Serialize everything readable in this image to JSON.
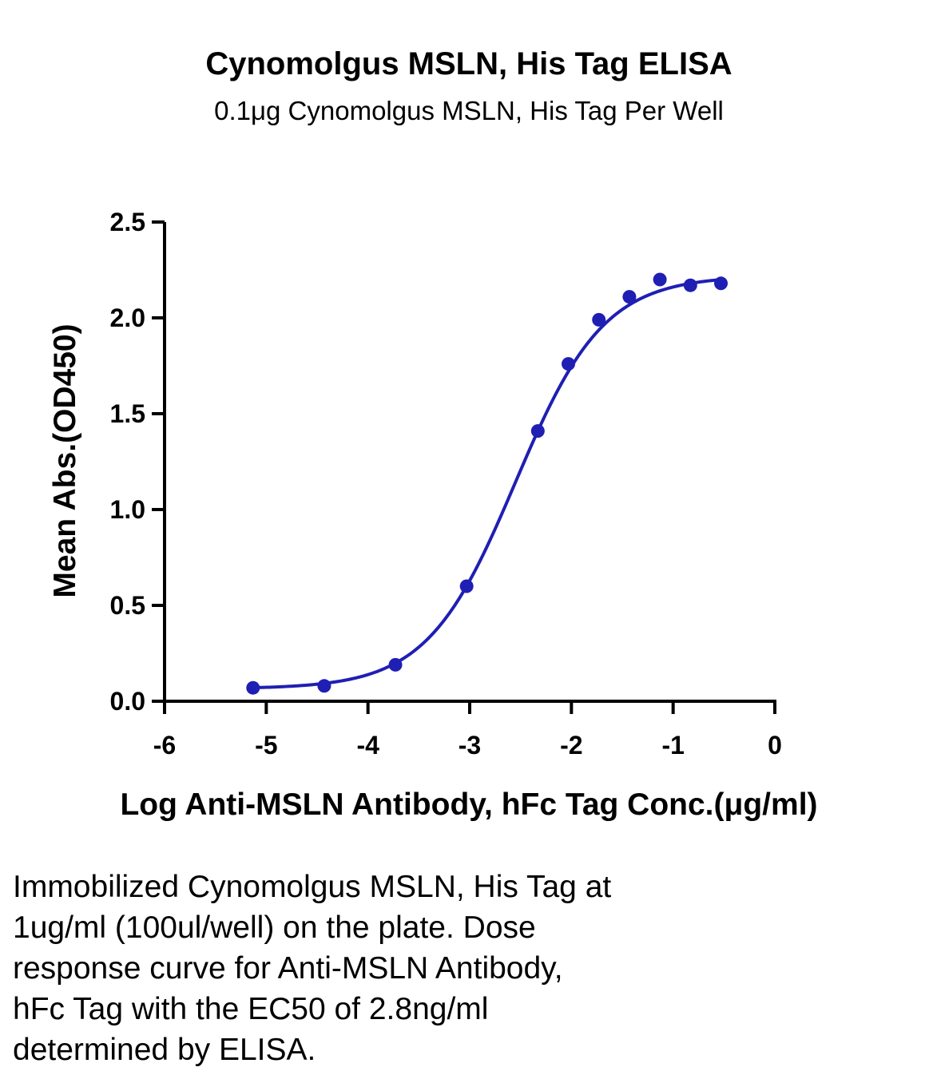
{
  "chart_data": {
    "type": "scatter",
    "title": "Cynomolgus MSLN, His Tag ELISA",
    "subtitle": "0.1μg Cynomolgus MSLN, His Tag Per Well",
    "xlabel": "Log Anti-MSLN Antibody, hFc Tag Conc.(μg/ml)",
    "ylabel": "Mean Abs.(OD450)",
    "xlim": [
      -6,
      0
    ],
    "ylim": [
      0,
      2.5
    ],
    "xticks": [
      -6,
      -5,
      -4,
      -3,
      -2,
      -1,
      0
    ],
    "xtick_labels": [
      "-6",
      "-5",
      "-4",
      "-3",
      "-2",
      "-1",
      "0"
    ],
    "yticks": [
      0,
      0.5,
      1.0,
      1.5,
      2.0,
      2.5
    ],
    "ytick_labels": [
      "0.0",
      "0.5",
      "1.0",
      "1.5",
      "2.0",
      "2.5"
    ],
    "grid": false,
    "series": [
      {
        "color": "#1f1fb4",
        "x": [
          -5.13,
          -4.43,
          -3.73,
          -3.03,
          -2.33,
          -2.03,
          -1.73,
          -1.43,
          -1.13,
          -0.83,
          -0.53
        ],
        "y": [
          0.07,
          0.08,
          0.19,
          0.6,
          1.41,
          1.76,
          1.99,
          2.11,
          2.2,
          2.17,
          2.18
        ],
        "fit": {
          "model": "4PL",
          "bottom": 0.065,
          "top": 2.22,
          "logEC50": -2.55,
          "hill": 1.0,
          "xrange": [
            -5.13,
            -0.53
          ]
        }
      }
    ]
  },
  "caption": "Immobilized Cynomolgus MSLN, His Tag at\n1ug/ml (100ul/well) on the plate. Dose\nresponse curve for Anti-MSLN Antibody,\nhFc Tag with the EC50 of 2.8ng/ml\ndetermined by ELISA."
}
